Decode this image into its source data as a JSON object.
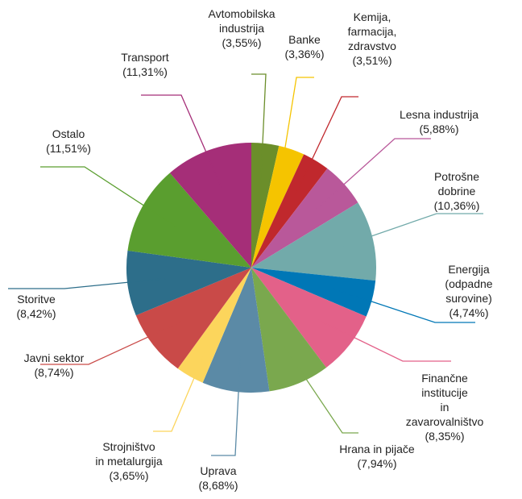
{
  "chart_data": {
    "type": "pie",
    "categories": [
      "Avtomobilska\nindustrija",
      "Banke",
      "Kemija,\nfarmacija,\nzdravstvo",
      "Lesna industrija",
      "Potrošne dobrine",
      "Energija\n(odpadne surovine)",
      "Finančne institucije\nin zavarovalništvo",
      "Hrana in pijače",
      "Uprava",
      "Strojništvo\nin metalurgija",
      "Javni sektor",
      "Storitve",
      "Ostalo",
      "Transport"
    ],
    "values": [
      3.55,
      3.36,
      3.51,
      5.88,
      10.36,
      4.74,
      8.35,
      7.94,
      8.68,
      3.65,
      8.74,
      8.42,
      11.51,
      11.31
    ],
    "value_labels": [
      "(3,55%)",
      "(3,36%)",
      "(3,51%)",
      "(5,88%)",
      "(10,36%)",
      "(4,74%)",
      "(8,35%)",
      "(7,94%)",
      "(8,68%)",
      "(3,65%)",
      "(8,74%)",
      "(8,42%)",
      "(11,51%)",
      "(11,31%)"
    ],
    "colors": [
      "#6b8e2a",
      "#f5c400",
      "#c0282d",
      "#b9589a",
      "#72aaaa",
      "#0077b6",
      "#e36189",
      "#7aa84e",
      "#5b8aa6",
      "#fcd55c",
      "#c94a48",
      "#2d6e8a",
      "#5a9e2f",
      "#a52e78"
    ]
  }
}
